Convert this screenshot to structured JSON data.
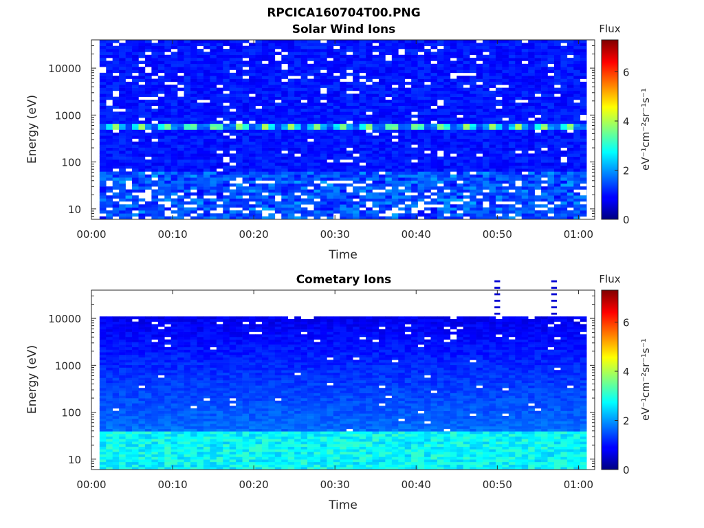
{
  "figure": {
    "title": "RPCICA160704T00.PNG"
  },
  "colors": {
    "colormap": "jet",
    "background": "#ffffff",
    "axis": "#262626"
  },
  "chart_data": [
    {
      "type": "heatmap",
      "title": "Solar Wind Ions",
      "xlabel": "Time",
      "ylabel": "Energy (eV)",
      "yscale": "log",
      "xlim": [
        "00:00",
        "01:02"
      ],
      "ylim": [
        6,
        40000
      ],
      "xticks": [
        "00:00",
        "00:10",
        "00:20",
        "00:30",
        "00:40",
        "00:50",
        "01:00"
      ],
      "yticks": [
        "10",
        "100",
        "1000",
        "10000"
      ],
      "data_time_range": [
        "00:01",
        "01:01"
      ],
      "energy_range": [
        6,
        40000
      ],
      "colorbar": {
        "label": "Flux",
        "units": "eV⁻¹cm⁻²sr⁻¹s⁻¹",
        "range": [
          0,
          7.3
        ],
        "ticks": [
          "0",
          "2",
          "4",
          "6"
        ]
      },
      "features": {
        "background_level": 0.8,
        "peak_energy_eV": 580,
        "peak_level": 3.5,
        "pulse_period_min": 3.1,
        "sparse_above_eV": 1500
      }
    },
    {
      "type": "heatmap",
      "title": "Cometary Ions",
      "xlabel": "Time",
      "ylabel": "Energy (eV)",
      "yscale": "log",
      "xlim": [
        "00:00",
        "01:02"
      ],
      "ylim": [
        6,
        40000
      ],
      "xticks": [
        "00:00",
        "00:10",
        "00:20",
        "00:30",
        "00:40",
        "00:50",
        "01:00"
      ],
      "yticks": [
        "10",
        "100",
        "1000",
        "10000"
      ],
      "data_time_range": [
        "00:01",
        "01:01"
      ],
      "energy_range": [
        6,
        11000
      ],
      "colorbar": {
        "label": "Flux",
        "units": "eV⁻¹cm⁻²sr⁻¹s⁻¹",
        "range": [
          0,
          7.3
        ],
        "ticks": [
          "0",
          "2",
          "4",
          "6"
        ]
      },
      "features": {
        "background_level": 0.6,
        "low_energy_level": 2.6,
        "low_energy_below_eV": 40,
        "high_energy_dashes_min": [
          "00:50",
          "00:57"
        ]
      }
    }
  ]
}
